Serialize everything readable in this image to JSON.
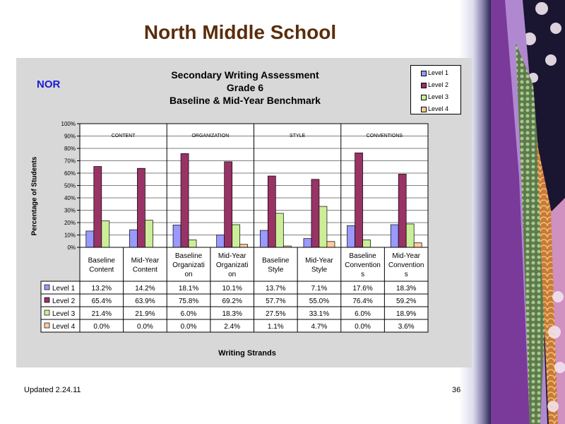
{
  "slide": {
    "title": "North Middle School",
    "footer_left": "Updated  2.24.11",
    "page_number": "36"
  },
  "chart_label": "NOR",
  "chart_data": {
    "type": "bar",
    "title_lines": [
      "Secondary Writing Assessment",
      "Grade 6",
      "Baseline & Mid-Year Benchmark"
    ],
    "ylabel": "Percentage of Students",
    "xlabel": "Writing Strands",
    "ylim": [
      0,
      100
    ],
    "yticks": [
      "0%",
      "10%",
      "20%",
      "30%",
      "40%",
      "50%",
      "60%",
      "70%",
      "80%",
      "90%",
      "100%"
    ],
    "groups": [
      "CONTENT",
      "ORGANIZATION",
      "STYLE",
      "CONVENTIONS"
    ],
    "categories": [
      [
        "Baseline",
        "Content"
      ],
      [
        "Mid-Year",
        "Content"
      ],
      [
        "Baseline",
        "Organizati",
        "on"
      ],
      [
        "Mid-Year",
        "Organizati",
        "on"
      ],
      [
        "Baseline",
        "Style"
      ],
      [
        "Mid-Year",
        "Style"
      ],
      [
        "Baseline",
        "Convention",
        "s"
      ],
      [
        "Mid-Year",
        "Convention",
        "s"
      ]
    ],
    "series": [
      {
        "name": "Level 1",
        "color": "#9999ff",
        "values": [
          13.2,
          14.2,
          18.1,
          10.1,
          13.7,
          7.1,
          17.6,
          18.3
        ],
        "labels": [
          "13.2%",
          "14.2%",
          "18.1%",
          "10.1%",
          "13.7%",
          "7.1%",
          "17.6%",
          "18.3%"
        ]
      },
      {
        "name": "Level 2",
        "color": "#993366",
        "values": [
          65.4,
          63.9,
          75.8,
          69.2,
          57.7,
          55.0,
          76.4,
          59.2
        ],
        "labels": [
          "65.4%",
          "63.9%",
          "75.8%",
          "69.2%",
          "57.7%",
          "55.0%",
          "76.4%",
          "59.2%"
        ]
      },
      {
        "name": "Level 3",
        "color": "#ccee99",
        "values": [
          21.4,
          21.9,
          6.0,
          18.3,
          27.5,
          33.1,
          6.0,
          18.9
        ],
        "labels": [
          "21.4%",
          "21.9%",
          "6.0%",
          "18.3%",
          "27.5%",
          "33.1%",
          "6.0%",
          "18.9%"
        ]
      },
      {
        "name": "Level 4",
        "color": "#ffcc99",
        "values": [
          0.0,
          0.0,
          0.0,
          2.4,
          1.1,
          4.7,
          0.0,
          3.6
        ],
        "labels": [
          "0.0%",
          "0.0%",
          "0.0%",
          "2.4%",
          "1.1%",
          "4.7%",
          "0.0%",
          "3.6%"
        ]
      }
    ],
    "grid": true,
    "legend_position": "top-right"
  },
  "colors": {
    "title": "#5a2d0c",
    "chart_label": "#1a1ad8",
    "panel": "#d8d8d8"
  }
}
